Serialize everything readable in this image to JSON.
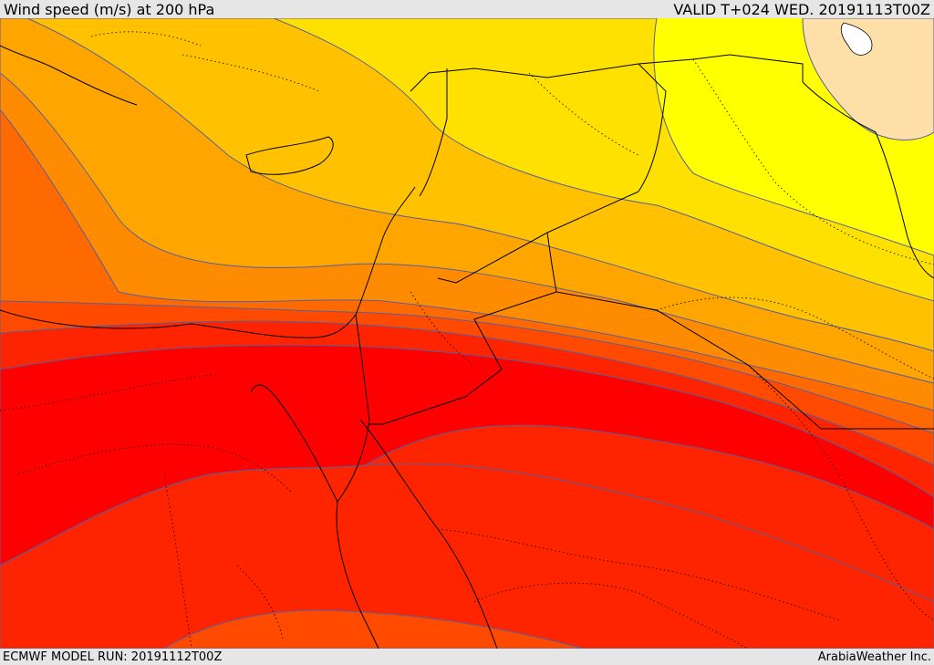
{
  "header": {
    "title": "Wind speed (m/s) at 200 hPa",
    "valid_time": "VALID T+024 WED. 20191113T00Z"
  },
  "footer": {
    "model_run": "ECMWF MODEL RUN: 20191112T00Z",
    "credit": "ArabiaWeather Inc."
  },
  "map": {
    "field": "wind speed at 200 hPa",
    "palette": [
      "#fedfa8",
      "#ffff00",
      "#ffe100",
      "#ffc100",
      "#ffa500",
      "#ff8c00",
      "#ff6a00",
      "#ff4a00",
      "#ff2400",
      "#ff0000"
    ],
    "contour_color": "#5560a0",
    "border_color": "#000000"
  }
}
